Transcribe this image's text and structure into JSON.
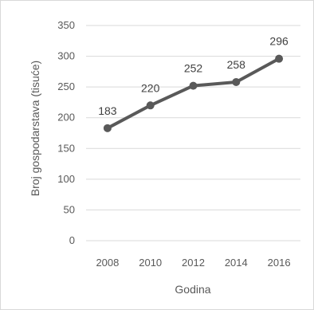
{
  "chart_data": {
    "type": "line",
    "x": [
      "2008",
      "2010",
      "2012",
      "2014",
      "2016"
    ],
    "series": [
      {
        "values": [
          183,
          220,
          252,
          258,
          296
        ]
      }
    ],
    "data_labels": [
      "183",
      "220",
      "252",
      "258",
      "296"
    ],
    "xlabel": "Godina",
    "ylabel": "Broj gospodarstava (tisuće)",
    "ylim": [
      0,
      350
    ],
    "yticks": [
      "0",
      "50",
      "100",
      "150",
      "200",
      "250",
      "300",
      "350"
    ],
    "grid": true,
    "legend": "none",
    "colors": {
      "line": "#595959",
      "grid": "#d9d9d9",
      "text": "#595959"
    }
  }
}
